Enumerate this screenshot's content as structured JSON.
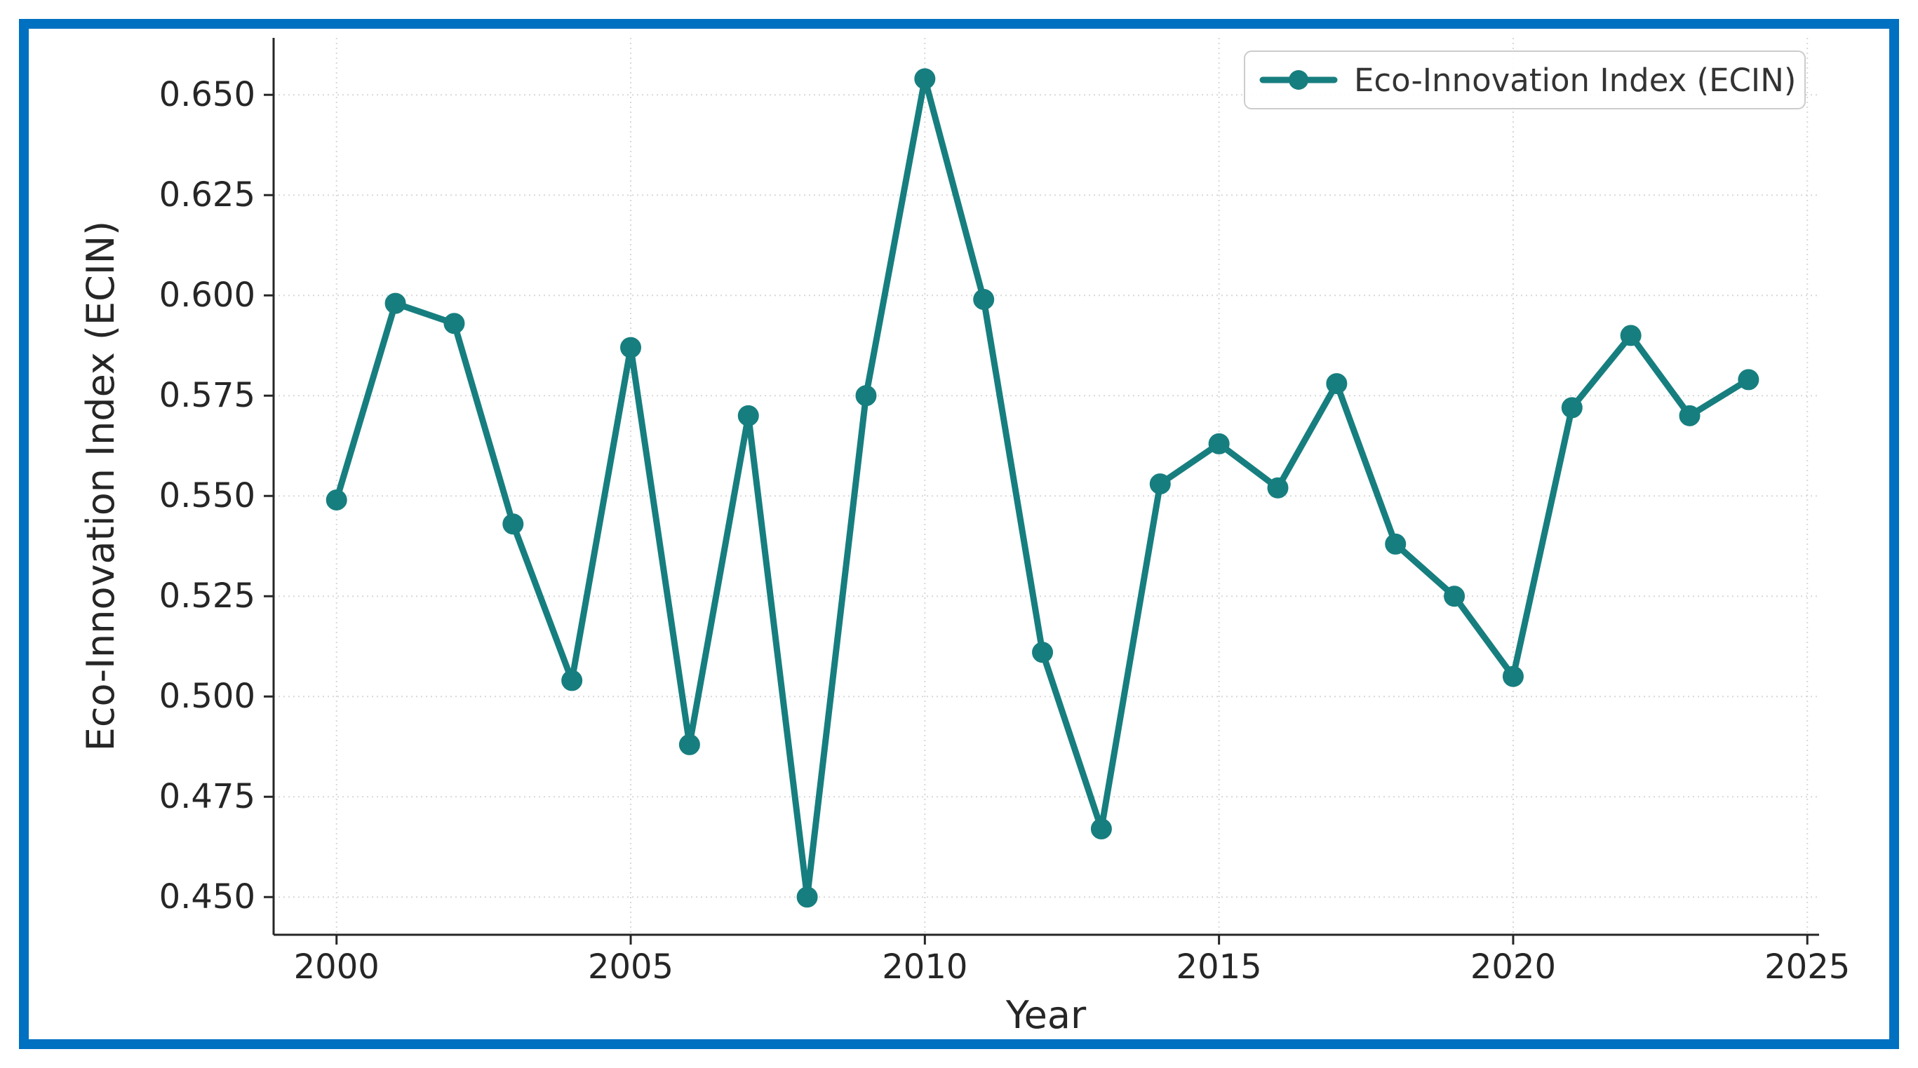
{
  "figure": {
    "frame_border_color": "#0071C1",
    "background_color": "#FFFFFF"
  },
  "chart_data": {
    "type": "line",
    "title": "",
    "xlabel": "Year",
    "ylabel": "Eco-Innovation Index (ECIN)",
    "legend": {
      "position": "upper-right",
      "entries": [
        {
          "label": "Eco-Innovation Index (ECIN)",
          "color": "#177E7F",
          "marker": "circle"
        }
      ]
    },
    "x": [
      2000,
      2001,
      2002,
      2003,
      2004,
      2005,
      2006,
      2007,
      2008,
      2009,
      2010,
      2011,
      2012,
      2013,
      2014,
      2015,
      2016,
      2017,
      2018,
      2019,
      2020,
      2021,
      2022,
      2023,
      2024
    ],
    "series": [
      {
        "name": "Eco-Innovation Index (ECIN)",
        "color": "#177E7F",
        "marker": "circle",
        "values": [
          0.549,
          0.598,
          0.593,
          0.543,
          0.504,
          0.587,
          0.488,
          0.57,
          0.45,
          0.575,
          0.654,
          0.599,
          0.511,
          0.467,
          0.553,
          0.563,
          0.552,
          0.578,
          0.538,
          0.525,
          0.505,
          0.572,
          0.59,
          0.57,
          0.579
        ]
      }
    ],
    "xlim": [
      1998.93,
      2025.2
    ],
    "ylim": [
      0.4406,
      0.6642
    ],
    "xticks": [
      2000,
      2005,
      2010,
      2015,
      2020,
      2025
    ],
    "yticks": [
      0.45,
      0.475,
      0.5,
      0.525,
      0.55,
      0.575,
      0.6,
      0.625,
      0.65
    ],
    "ytick_decimals": 3,
    "grid": true,
    "grid_on": "both",
    "axis_color": "#262626",
    "grid_color": "#D8D8D8",
    "tick_label_color": "#262626"
  }
}
